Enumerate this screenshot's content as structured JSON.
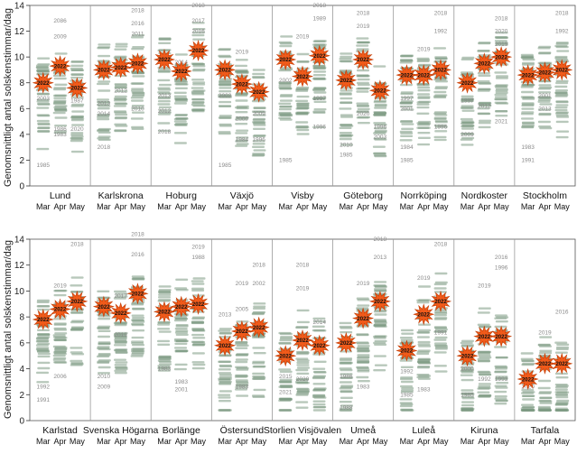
{
  "chart_data": {
    "type": "scatter",
    "ylabel": "Genomsnittligt antal solskenstimmar/dag",
    "ylim": [
      0,
      14
    ],
    "yticks": [
      0,
      2,
      4,
      6,
      8,
      10,
      12,
      14
    ],
    "months": [
      "Mar",
      "Apr",
      "May"
    ],
    "highlight_year": "2022",
    "colors": {
      "points": "#7d9a83",
      "labels": "#8a8a8a",
      "burst_fill": "#f05a1a",
      "burst_stroke": "#c23a00",
      "frame": "#999999"
    },
    "panels": [
      {
        "stations": [
          {
            "name": "Lund",
            "values_2022": [
              8.0,
              9.3,
              7.6
            ],
            "annotations": [
              {
                "m": 1,
                "y": 12.8,
                "t": "2086"
              },
              {
                "m": 1,
                "y": 11.6,
                "t": "2009"
              },
              {
                "m": 0,
                "y": 6.8,
                "t": "2003"
              },
              {
                "m": 0,
                "y": 1.6,
                "t": "1985"
              },
              {
                "m": 1,
                "y": 4.4,
                "t": "1986"
              },
              {
                "m": 1,
                "y": 4.0,
                "t": "1983"
              },
              {
                "m": 2,
                "y": 6.6,
                "t": "1987"
              },
              {
                "m": 2,
                "y": 4.4,
                "t": "2020"
              }
            ]
          },
          {
            "name": "Karlskrona",
            "values_2022": [
              9.0,
              9.2,
              9.5
            ],
            "annotations": [
              {
                "m": 2,
                "y": 13.6,
                "t": "2018"
              },
              {
                "m": 2,
                "y": 12.6,
                "t": "2016"
              },
              {
                "m": 2,
                "y": 11.8,
                "t": "2011"
              },
              {
                "m": 0,
                "y": 6.4,
                "t": "2013"
              },
              {
                "m": 0,
                "y": 5.6,
                "t": "2014"
              },
              {
                "m": 1,
                "y": 7.4,
                "t": "2012"
              },
              {
                "m": 0,
                "y": 3.0,
                "t": "2018"
              },
              {
                "m": 2,
                "y": 6.0,
                "t": "2010"
              }
            ]
          },
          {
            "name": "Hoburg",
            "values_2022": [
              9.8,
              8.9,
              10.5
            ],
            "annotations": [
              {
                "m": 2,
                "y": 14.0,
                "t": "2018"
              },
              {
                "m": 2,
                "y": 12.8,
                "t": "2017"
              },
              {
                "m": 2,
                "y": 12.0,
                "t": "2016"
              },
              {
                "m": 1,
                "y": 9.6,
                "t": "2014"
              },
              {
                "m": 0,
                "y": 7.0,
                "t": "2013"
              },
              {
                "m": 0,
                "y": 5.8,
                "t": "2012"
              },
              {
                "m": 0,
                "y": 4.2,
                "t": "2018"
              }
            ]
          },
          {
            "name": "Växjö",
            "values_2022": [
              9.0,
              7.9,
              7.3
            ],
            "annotations": [
              {
                "m": 1,
                "y": 10.4,
                "t": "2019"
              },
              {
                "m": 0,
                "y": 7.0,
                "t": "2003"
              },
              {
                "m": 1,
                "y": 5.2,
                "t": "2000"
              },
              {
                "m": 2,
                "y": 5.6,
                "t": "2009"
              },
              {
                "m": 2,
                "y": 3.6,
                "t": "1996"
              },
              {
                "m": 0,
                "y": 1.6,
                "t": "1985"
              },
              {
                "m": 1,
                "y": 3.6,
                "t": "1984"
              }
            ]
          },
          {
            "name": "Visby",
            "values_2022": [
              9.8,
              8.5,
              10.1
            ],
            "annotations": [
              {
                "m": 2,
                "y": 14.0,
                "t": "2018"
              },
              {
                "m": 2,
                "y": 13.0,
                "t": "1989"
              },
              {
                "m": 1,
                "y": 11.6,
                "t": "2019"
              },
              {
                "m": 0,
                "y": 8.2,
                "t": "2002"
              },
              {
                "m": 2,
                "y": 6.8,
                "t": "1997"
              },
              {
                "m": 2,
                "y": 4.6,
                "t": "1996"
              },
              {
                "m": 0,
                "y": 2.0,
                "t": "1985"
              }
            ]
          },
          {
            "name": "Göteborg",
            "values_2022": [
              8.2,
              9.8,
              7.4
            ],
            "annotations": [
              {
                "m": 1,
                "y": 13.4,
                "t": "2018"
              },
              {
                "m": 1,
                "y": 12.4,
                "t": "2019"
              },
              {
                "m": 1,
                "y": 5.6,
                "t": "2020"
              },
              {
                "m": 2,
                "y": 4.6,
                "t": "1996"
              },
              {
                "m": 2,
                "y": 3.8,
                "t": "2003"
              },
              {
                "m": 0,
                "y": 3.2,
                "t": "2010"
              },
              {
                "m": 0,
                "y": 2.4,
                "t": "1985"
              }
            ]
          },
          {
            "name": "Norrköping",
            "values_2022": [
              8.6,
              8.6,
              9.0
            ],
            "annotations": [
              {
                "m": 2,
                "y": 13.4,
                "t": "2018"
              },
              {
                "m": 2,
                "y": 12.0,
                "t": "1992"
              },
              {
                "m": 1,
                "y": 10.6,
                "t": "2019"
              },
              {
                "m": 0,
                "y": 6.8,
                "t": "1997"
              },
              {
                "m": 0,
                "y": 6.0,
                "t": "2001"
              },
              {
                "m": 2,
                "y": 4.6,
                "t": "1996"
              },
              {
                "m": 0,
                "y": 3.0,
                "t": "1984"
              },
              {
                "m": 0,
                "y": 2.0,
                "t": "1985"
              }
            ]
          },
          {
            "name": "Nordkoster",
            "values_2022": [
              8.0,
              9.5,
              10.0
            ],
            "annotations": [
              {
                "m": 2,
                "y": 13.0,
                "t": "2018"
              },
              {
                "m": 2,
                "y": 12.0,
                "t": "2020"
              },
              {
                "m": 2,
                "y": 11.0,
                "t": "2019"
              },
              {
                "m": 0,
                "y": 6.6,
                "t": "1997"
              },
              {
                "m": 1,
                "y": 6.2,
                "t": "2012"
              },
              {
                "m": 0,
                "y": 4.0,
                "t": "2009"
              },
              {
                "m": 2,
                "y": 5.0,
                "t": "2021"
              }
            ]
          },
          {
            "name": "Stockholm",
            "values_2022": [
              8.6,
              8.8,
              9.0
            ],
            "annotations": [
              {
                "m": 2,
                "y": 13.4,
                "t": "2018"
              },
              {
                "m": 2,
                "y": 12.0,
                "t": "1992"
              },
              {
                "m": 1,
                "y": 7.0,
                "t": "2001"
              },
              {
                "m": 1,
                "y": 6.0,
                "t": "2013"
              },
              {
                "m": 0,
                "y": 2.0,
                "t": "1991"
              },
              {
                "m": 0,
                "y": 3.0,
                "t": "1983"
              }
            ]
          }
        ]
      },
      {
        "stations": [
          {
            "name": "Karlstad",
            "values_2022": [
              7.8,
              8.6,
              9.2
            ],
            "annotations": [
              {
                "m": 2,
                "y": 13.6,
                "t": "2018"
              },
              {
                "m": 1,
                "y": 10.4,
                "t": "2019"
              },
              {
                "m": 1,
                "y": 9.0,
                "t": "2017"
              },
              {
                "m": 1,
                "y": 3.4,
                "t": "2006"
              },
              {
                "m": 0,
                "y": 2.6,
                "t": "1992"
              },
              {
                "m": 0,
                "y": 1.6,
                "t": "1991"
              }
            ]
          },
          {
            "name": "Svenska Högarna",
            "values_2022": [
              8.8,
              8.3,
              9.8
            ],
            "annotations": [
              {
                "m": 2,
                "y": 14.4,
                "t": "2018"
              },
              {
                "m": 2,
                "y": 12.8,
                "t": "2016"
              },
              {
                "m": 1,
                "y": 9.6,
                "t": "2017"
              },
              {
                "m": 1,
                "y": 6.6,
                "t": "2019"
              },
              {
                "m": 0,
                "y": 3.4,
                "t": "2010"
              },
              {
                "m": 0,
                "y": 2.6,
                "t": "2009"
              }
            ]
          },
          {
            "name": "Borlänge",
            "values_2022": [
              8.4,
              8.8,
              9.0
            ],
            "annotations": [
              {
                "m": 2,
                "y": 13.4,
                "t": "2019"
              },
              {
                "m": 2,
                "y": 12.6,
                "t": "1988"
              },
              {
                "m": 0,
                "y": 4.0,
                "t": "1983"
              },
              {
                "m": 1,
                "y": 3.0,
                "t": "1983"
              },
              {
                "m": 1,
                "y": 2.4,
                "t": "2001"
              }
            ]
          },
          {
            "name": "Östersund",
            "values_2022": [
              5.8,
              6.9,
              7.2
            ],
            "annotations": [
              {
                "m": 2,
                "y": 12.0,
                "t": "2018"
              },
              {
                "m": 1,
                "y": 10.6,
                "t": "2019"
              },
              {
                "m": 2,
                "y": 10.6,
                "t": "2002"
              },
              {
                "m": 0,
                "y": 8.2,
                "t": "2013"
              },
              {
                "m": 1,
                "y": 8.6,
                "t": "2005"
              },
              {
                "m": 1,
                "y": 2.6,
                "t": "1983"
              }
            ]
          },
          {
            "name": "Storlien Visjövalen",
            "values_2022": [
              5.0,
              6.2,
              5.8
            ],
            "annotations": [
              {
                "m": 1,
                "y": 12.0,
                "t": "2018"
              },
              {
                "m": 1,
                "y": 10.2,
                "t": "2019"
              },
              {
                "m": 2,
                "y": 7.6,
                "t": "2014"
              },
              {
                "m": 0,
                "y": 3.4,
                "t": "2015"
              },
              {
                "m": 1,
                "y": 3.2,
                "t": "2020"
              },
              {
                "m": 0,
                "y": 2.2,
                "t": "2021"
              }
            ]
          },
          {
            "name": "Umeå",
            "values_2022": [
              6.0,
              7.9,
              9.2
            ],
            "annotations": [
              {
                "m": 2,
                "y": 14.0,
                "t": "2018"
              },
              {
                "m": 2,
                "y": 12.6,
                "t": "2013"
              },
              {
                "m": 1,
                "y": 10.6,
                "t": "2019"
              },
              {
                "m": 0,
                "y": 3.4,
                "t": "1986"
              },
              {
                "m": 0,
                "y": 1.0,
                "t": "1988"
              },
              {
                "m": 1,
                "y": 2.6,
                "t": "1983"
              }
            ]
          },
          {
            "name": "Luleå",
            "values_2022": [
              5.4,
              8.2,
              9.2
            ],
            "annotations": [
              {
                "m": 2,
                "y": 13.6,
                "t": "2018"
              },
              {
                "m": 1,
                "y": 11.0,
                "t": "2019"
              },
              {
                "m": 2,
                "y": 6.8,
                "t": "1991"
              },
              {
                "m": 0,
                "y": 3.8,
                "t": "1992"
              },
              {
                "m": 0,
                "y": 2.0,
                "t": "1985"
              },
              {
                "m": 1,
                "y": 2.4,
                "t": "1983"
              }
            ]
          },
          {
            "name": "Kiruna",
            "values_2022": [
              5.0,
              6.5,
              6.5
            ],
            "annotations": [
              {
                "m": 2,
                "y": 12.6,
                "t": "2016"
              },
              {
                "m": 2,
                "y": 11.8,
                "t": "1996"
              },
              {
                "m": 1,
                "y": 10.4,
                "t": "2019"
              },
              {
                "m": 0,
                "y": 4.0,
                "t": "2000"
              },
              {
                "m": 1,
                "y": 3.2,
                "t": "1992"
              },
              {
                "m": 2,
                "y": 3.2,
                "t": "1993"
              },
              {
                "m": 0,
                "y": 2.0,
                "t": "1985"
              }
            ]
          },
          {
            "name": "Tarfala",
            "values_2022": [
              3.2,
              4.4,
              4.4
            ],
            "annotations": [
              {
                "m": 2,
                "y": 8.4,
                "t": "2016"
              },
              {
                "m": 1,
                "y": 6.8,
                "t": "2019"
              },
              {
                "m": 0,
                "y": 2.6,
                "t": "2020"
              }
            ]
          }
        ]
      }
    ]
  }
}
